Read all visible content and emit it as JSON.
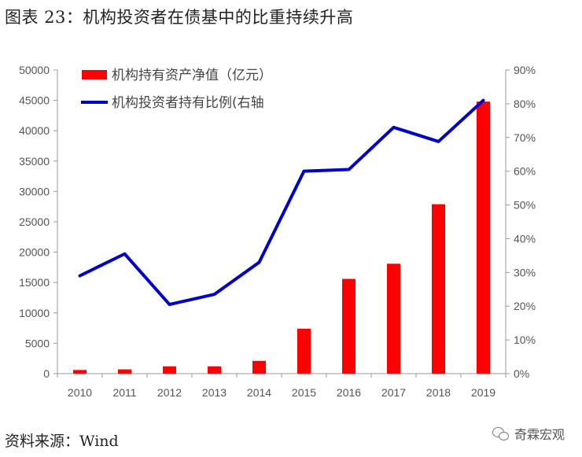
{
  "figure_title": "图表 23：机构投资者在债基中的比重持续升高",
  "source": "资料来源：Wind",
  "watermark": "奇霖宏观",
  "chart_data": {
    "type": "bar+line",
    "categories": [
      "2010",
      "2011",
      "2012",
      "2013",
      "2014",
      "2015",
      "2016",
      "2017",
      "2018",
      "2019"
    ],
    "series": [
      {
        "name": "机构持有资产净值（亿元）",
        "type": "bar",
        "axis": "left",
        "color": "#ff0000",
        "values": [
          600,
          700,
          1200,
          1200,
          2100,
          7400,
          15600,
          18100,
          27900,
          44800
        ]
      },
      {
        "name": "机构投资者持有比例(右轴",
        "type": "line",
        "axis": "right",
        "color": "#0000cc",
        "values": [
          0.29,
          0.355,
          0.205,
          0.235,
          0.33,
          0.6,
          0.605,
          0.73,
          0.688,
          0.81
        ]
      }
    ],
    "y_left": {
      "min": 0,
      "max": 50000,
      "step": 5000,
      "ticks": [
        "0",
        "5000",
        "10000",
        "15000",
        "20000",
        "25000",
        "30000",
        "35000",
        "40000",
        "45000",
        "50000"
      ]
    },
    "y_right": {
      "min": 0,
      "max": 0.9,
      "step": 0.1,
      "ticks": [
        "0%",
        "10%",
        "20%",
        "30%",
        "40%",
        "50%",
        "60%",
        "70%",
        "80%",
        "90%"
      ]
    },
    "legend_position": "top-left",
    "grid": false
  }
}
